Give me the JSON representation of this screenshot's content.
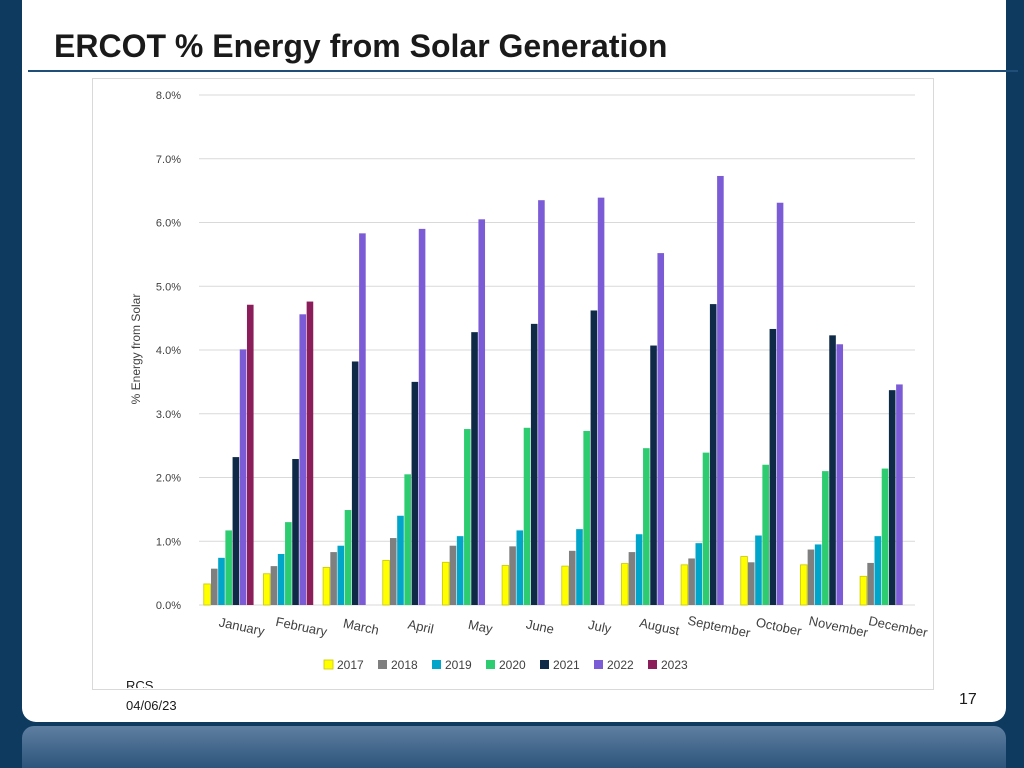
{
  "slide": {
    "title": "ERCOT % Energy from Solar Generation",
    "footer_org": "RCS",
    "footer_date": "04/06/23",
    "page_number": "17"
  },
  "chart_data": {
    "type": "bar",
    "ylabel": "% Energy from Solar",
    "ylim": [
      0,
      8
    ],
    "y_ticks": [
      "0.0%",
      "1.0%",
      "2.0%",
      "3.0%",
      "4.0%",
      "5.0%",
      "6.0%",
      "7.0%",
      "8.0%"
    ],
    "grid": true,
    "legend_position": "bottom",
    "categories": [
      "January",
      "February",
      "March",
      "April",
      "May",
      "June",
      "July",
      "August",
      "September",
      "October",
      "November",
      "December"
    ],
    "series": [
      {
        "name": "2017",
        "color": "#ffff00",
        "values": [
          0.33,
          0.49,
          0.59,
          0.7,
          0.67,
          0.62,
          0.61,
          0.65,
          0.63,
          0.76,
          0.63,
          0.45
        ]
      },
      {
        "name": "2018",
        "color": "#7f7f7f",
        "values": [
          0.57,
          0.61,
          0.83,
          1.05,
          0.93,
          0.92,
          0.85,
          0.83,
          0.73,
          0.67,
          0.87,
          0.66
        ]
      },
      {
        "name": "2019",
        "color": "#00a5c9",
        "values": [
          0.74,
          0.8,
          0.93,
          1.4,
          1.08,
          1.17,
          1.19,
          1.11,
          0.97,
          1.09,
          0.95,
          1.08
        ]
      },
      {
        "name": "2020",
        "color": "#2ecc71",
        "values": [
          1.17,
          1.3,
          1.49,
          2.05,
          2.76,
          2.78,
          2.73,
          2.46,
          2.39,
          2.2,
          2.1,
          2.14
        ]
      },
      {
        "name": "2021",
        "color": "#0e2a47",
        "values": [
          2.32,
          2.29,
          3.82,
          3.5,
          4.28,
          4.41,
          4.62,
          4.07,
          4.72,
          4.33,
          4.23,
          3.37
        ]
      },
      {
        "name": "2022",
        "color": "#7b5cd6",
        "values": [
          4.01,
          4.56,
          5.83,
          5.9,
          6.05,
          6.35,
          6.39,
          5.52,
          6.73,
          6.31,
          4.09,
          3.46
        ]
      },
      {
        "name": "2023",
        "color": "#8b1e5a",
        "values": [
          4.71,
          4.76,
          null,
          null,
          null,
          null,
          null,
          null,
          null,
          null,
          null,
          null
        ]
      }
    ]
  }
}
